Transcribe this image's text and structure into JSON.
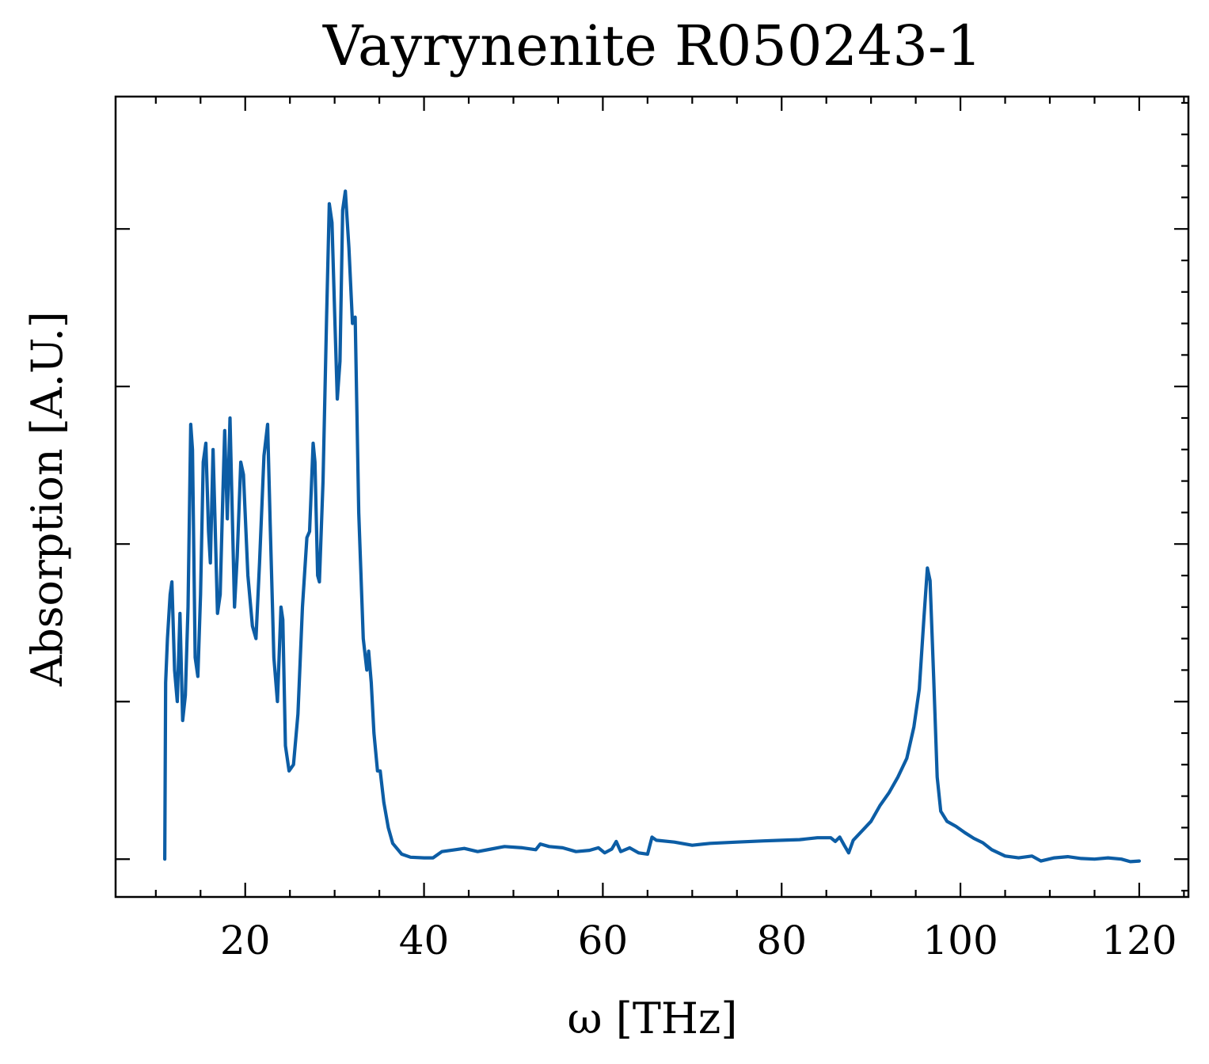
{
  "chart_data": {
    "type": "line",
    "title": "Vayrynenite R050243-1",
    "xlabel": "ω [THz]",
    "ylabel": "Absorption [A.U.]",
    "xlim": [
      5.5,
      125.5
    ],
    "ylim": [
      -0.06,
      1.21
    ],
    "x_ticks": [
      20,
      40,
      60,
      80,
      100,
      120
    ],
    "x_tick_labels": [
      "20",
      "40",
      "60",
      "80",
      "100",
      "120"
    ],
    "y_ticks": [
      0.0,
      0.25,
      0.5,
      0.75,
      1.0
    ],
    "y_tick_labels_shown": false,
    "grid": false,
    "legend": "none",
    "colors": {
      "line": "#0C5DA5"
    },
    "series": [
      {
        "points": [
          [
            11.0,
            0.0
          ],
          [
            11.1,
            0.28
          ],
          [
            11.3,
            0.35
          ],
          [
            11.6,
            0.42
          ],
          [
            11.8,
            0.44
          ],
          [
            12.1,
            0.3
          ],
          [
            12.4,
            0.25
          ],
          [
            12.7,
            0.39
          ],
          [
            13.0,
            0.22
          ],
          [
            13.3,
            0.26
          ],
          [
            13.6,
            0.4
          ],
          [
            13.9,
            0.69
          ],
          [
            14.1,
            0.65
          ],
          [
            14.4,
            0.32
          ],
          [
            14.7,
            0.29
          ],
          [
            15.0,
            0.42
          ],
          [
            15.3,
            0.63
          ],
          [
            15.6,
            0.66
          ],
          [
            15.9,
            0.52
          ],
          [
            16.1,
            0.47
          ],
          [
            16.4,
            0.65
          ],
          [
            16.6,
            0.55
          ],
          [
            16.9,
            0.39
          ],
          [
            17.2,
            0.42
          ],
          [
            17.5,
            0.58
          ],
          [
            17.7,
            0.68
          ],
          [
            18.0,
            0.54
          ],
          [
            18.3,
            0.7
          ],
          [
            18.6,
            0.52
          ],
          [
            18.8,
            0.4
          ],
          [
            19.1,
            0.48
          ],
          [
            19.5,
            0.63
          ],
          [
            19.8,
            0.61
          ],
          [
            20.3,
            0.45
          ],
          [
            20.8,
            0.37
          ],
          [
            21.2,
            0.35
          ],
          [
            21.6,
            0.47
          ],
          [
            22.1,
            0.64
          ],
          [
            22.5,
            0.69
          ],
          [
            22.8,
            0.53
          ],
          [
            23.2,
            0.32
          ],
          [
            23.6,
            0.25
          ],
          [
            24.0,
            0.4
          ],
          [
            24.2,
            0.38
          ],
          [
            24.5,
            0.18
          ],
          [
            24.9,
            0.14
          ],
          [
            25.4,
            0.15
          ],
          [
            25.9,
            0.23
          ],
          [
            26.4,
            0.4
          ],
          [
            26.9,
            0.51
          ],
          [
            27.2,
            0.52
          ],
          [
            27.6,
            0.66
          ],
          [
            27.8,
            0.63
          ],
          [
            28.1,
            0.45
          ],
          [
            28.3,
            0.44
          ],
          [
            28.7,
            0.6
          ],
          [
            29.1,
            0.86
          ],
          [
            29.4,
            1.04
          ],
          [
            29.7,
            1.01
          ],
          [
            30.0,
            0.87
          ],
          [
            30.3,
            0.73
          ],
          [
            30.6,
            0.79
          ],
          [
            30.9,
            1.03
          ],
          [
            31.2,
            1.06
          ],
          [
            31.6,
            0.97
          ],
          [
            32.0,
            0.85
          ],
          [
            32.3,
            0.86
          ],
          [
            32.7,
            0.55
          ],
          [
            33.2,
            0.35
          ],
          [
            33.6,
            0.3
          ],
          [
            33.8,
            0.33
          ],
          [
            34.1,
            0.28
          ],
          [
            34.4,
            0.2
          ],
          [
            34.8,
            0.14
          ],
          [
            35.1,
            0.14
          ],
          [
            35.5,
            0.09
          ],
          [
            36.0,
            0.05
          ],
          [
            36.5,
            0.025
          ],
          [
            37.5,
            0.008
          ],
          [
            38.5,
            0.003
          ],
          [
            40.0,
            0.002
          ],
          [
            41.0,
            0.002
          ],
          [
            42.0,
            0.012
          ],
          [
            43.5,
            0.015
          ],
          [
            44.5,
            0.017
          ],
          [
            46.0,
            0.012
          ],
          [
            47.5,
            0.016
          ],
          [
            49.0,
            0.02
          ],
          [
            51.0,
            0.018
          ],
          [
            52.5,
            0.015
          ],
          [
            53.0,
            0.024
          ],
          [
            54.0,
            0.02
          ],
          [
            55.5,
            0.018
          ],
          [
            57.0,
            0.012
          ],
          [
            58.5,
            0.014
          ],
          [
            59.5,
            0.018
          ],
          [
            60.2,
            0.01
          ],
          [
            61.0,
            0.016
          ],
          [
            61.5,
            0.028
          ],
          [
            62.0,
            0.012
          ],
          [
            63.0,
            0.018
          ],
          [
            64.0,
            0.01
          ],
          [
            65.0,
            0.008
          ],
          [
            65.5,
            0.035
          ],
          [
            66.0,
            0.03
          ],
          [
            68.0,
            0.027
          ],
          [
            70.0,
            0.022
          ],
          [
            72.0,
            0.025
          ],
          [
            75.0,
            0.027
          ],
          [
            78.0,
            0.029
          ],
          [
            80.0,
            0.03
          ],
          [
            82.0,
            0.031
          ],
          [
            84.0,
            0.034
          ],
          [
            85.5,
            0.034
          ],
          [
            86.0,
            0.028
          ],
          [
            86.5,
            0.035
          ],
          [
            87.0,
            0.022
          ],
          [
            87.5,
            0.01
          ],
          [
            88.0,
            0.03
          ],
          [
            89.0,
            0.045
          ],
          [
            90.0,
            0.06
          ],
          [
            91.0,
            0.085
          ],
          [
            92.0,
            0.105
          ],
          [
            93.0,
            0.13
          ],
          [
            94.0,
            0.16
          ],
          [
            94.8,
            0.21
          ],
          [
            95.4,
            0.27
          ],
          [
            95.9,
            0.38
          ],
          [
            96.3,
            0.462
          ],
          [
            96.6,
            0.442
          ],
          [
            97.0,
            0.29
          ],
          [
            97.4,
            0.13
          ],
          [
            97.8,
            0.076
          ],
          [
            98.5,
            0.06
          ],
          [
            99.5,
            0.052
          ],
          [
            100.5,
            0.042
          ],
          [
            101.5,
            0.033
          ],
          [
            102.5,
            0.026
          ],
          [
            103.5,
            0.015
          ],
          [
            105.0,
            0.005
          ],
          [
            106.5,
            0.002
          ],
          [
            108.0,
            0.005
          ],
          [
            109.0,
            -0.003
          ],
          [
            110.5,
            0.002
          ],
          [
            112.0,
            0.004
          ],
          [
            113.5,
            0.001
          ],
          [
            115.0,
            0.0
          ],
          [
            116.5,
            0.002
          ],
          [
            118.0,
            0.0
          ],
          [
            119.0,
            -0.004
          ],
          [
            120.0,
            -0.003
          ]
        ]
      }
    ]
  }
}
